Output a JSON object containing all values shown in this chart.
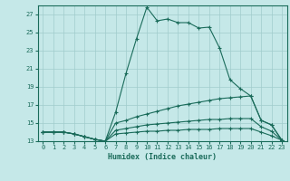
{
  "xlabel": "Humidex (Indice chaleur)",
  "xlim": [
    -0.5,
    23.5
  ],
  "ylim": [
    13,
    28
  ],
  "background_color": "#c5e8e8",
  "grid_color": "#a0cccc",
  "line_color": "#1a6b5a",
  "x_ticks": [
    0,
    1,
    2,
    3,
    4,
    5,
    6,
    7,
    8,
    9,
    10,
    11,
    12,
    13,
    14,
    15,
    16,
    17,
    18,
    19,
    20,
    21,
    22,
    23
  ],
  "y_ticks": [
    13,
    15,
    17,
    19,
    21,
    23,
    25,
    27
  ],
  "curve1_y": [
    14.0,
    14.0,
    14.0,
    13.8,
    13.5,
    13.2,
    13.0,
    16.2,
    20.5,
    24.3,
    27.8,
    26.3,
    26.5,
    26.1,
    26.1,
    25.5,
    25.6,
    23.3,
    19.8,
    18.8,
    18.0,
    15.3,
    14.8,
    13.1
  ],
  "curve2_y": [
    14.0,
    14.0,
    14.0,
    13.8,
    13.5,
    13.2,
    13.0,
    15.0,
    15.3,
    15.7,
    16.0,
    16.3,
    16.6,
    16.9,
    17.1,
    17.3,
    17.5,
    17.7,
    17.8,
    17.9,
    18.0,
    15.3,
    14.8,
    13.1
  ],
  "curve3_y": [
    14.0,
    14.0,
    14.0,
    13.8,
    13.5,
    13.2,
    13.0,
    14.2,
    14.4,
    14.6,
    14.8,
    14.9,
    15.0,
    15.1,
    15.2,
    15.3,
    15.4,
    15.4,
    15.5,
    15.5,
    15.5,
    14.6,
    14.1,
    13.1
  ],
  "curve4_y": [
    14.0,
    14.0,
    14.0,
    13.8,
    13.5,
    13.2,
    13.0,
    13.8,
    13.9,
    14.0,
    14.1,
    14.1,
    14.2,
    14.2,
    14.3,
    14.3,
    14.3,
    14.4,
    14.4,
    14.4,
    14.4,
    14.0,
    13.6,
    13.1
  ]
}
